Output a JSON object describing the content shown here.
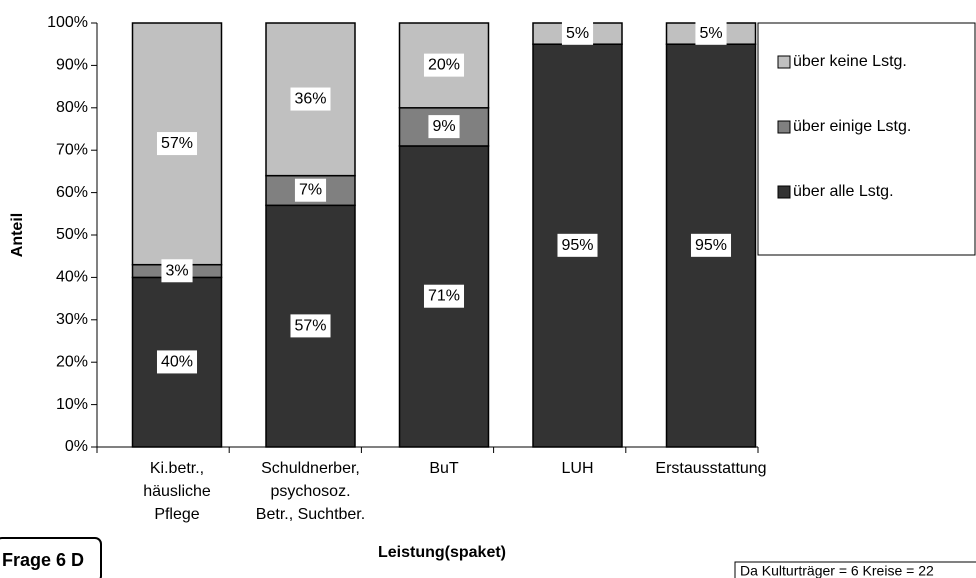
{
  "chart_data": {
    "type": "stacked_bar",
    "y_label": "Anteil",
    "x_label": "Leistung(spaket)",
    "badge": "Frage 6 D",
    "footnote": "Da Kulturträger = 6 Kreise = 22",
    "categories": [
      [
        "Ki.betr.,",
        "häusliche",
        "Pflege"
      ],
      [
        "Schuldnerber,",
        "psychosoz.",
        "Betr., Suchtber."
      ],
      [
        "BuT"
      ],
      [
        "LUH"
      ],
      [
        "Erstausstattung"
      ]
    ],
    "series": [
      {
        "name": "über alle Lstg.",
        "color": "#333333",
        "values": [
          40,
          57,
          71,
          95,
          95
        ],
        "value_labels": [
          "40%",
          "57%",
          "71%",
          "95%",
          "95%"
        ]
      },
      {
        "name": "über einige Lstg.",
        "color": "#808080",
        "values": [
          3,
          7,
          9,
          0,
          0
        ],
        "value_labels": [
          "3%",
          "7%",
          "9%",
          null,
          null
        ]
      },
      {
        "name": "über keine Lstg.",
        "color": "#c0c0c0",
        "values": [
          57,
          36,
          20,
          5,
          5
        ],
        "value_labels": [
          "57%",
          "36%",
          "20%",
          "5%",
          "5%"
        ]
      }
    ],
    "ylim": [
      0,
      100
    ],
    "yticks": [
      {
        "value": 0,
        "label": "0%"
      },
      {
        "value": 10,
        "label": "10%"
      },
      {
        "value": 20,
        "label": "20%"
      },
      {
        "value": 30,
        "label": "30%"
      },
      {
        "value": 40,
        "label": "40%"
      },
      {
        "value": 50,
        "label": "50%"
      },
      {
        "value": 60,
        "label": "60%"
      },
      {
        "value": 70,
        "label": "70%"
      },
      {
        "value": 80,
        "label": "80%"
      },
      {
        "value": 90,
        "label": "90%"
      },
      {
        "value": 100,
        "label": "100%"
      }
    ],
    "legend": "right"
  }
}
